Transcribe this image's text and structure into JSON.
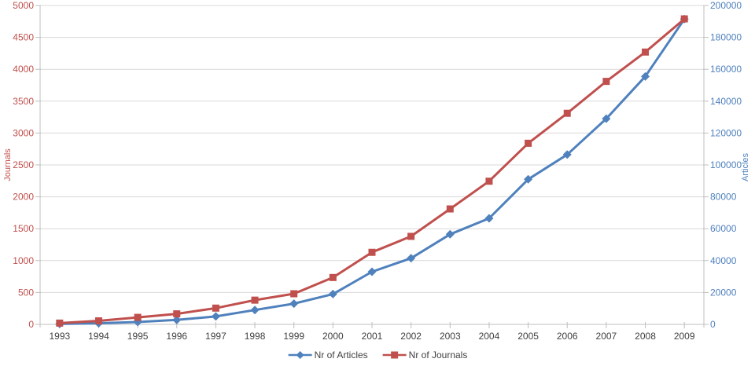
{
  "chart_data": {
    "type": "line",
    "title": "",
    "xlabel": "",
    "grid": true,
    "legend_position": "bottom",
    "x_categories": [
      1993,
      1994,
      1995,
      1996,
      1997,
      1998,
      1999,
      2000,
      2001,
      2002,
      2003,
      2004,
      2005,
      2006,
      2007,
      2008,
      2009
    ],
    "left_axis": {
      "label": "Journals",
      "min": 0,
      "max": 5000,
      "tick_step": 500,
      "ticks": [
        0,
        500,
        1000,
        1500,
        2000,
        2500,
        3000,
        3500,
        4000,
        4500,
        5000
      ],
      "color": "#C0504D"
    },
    "right_axis": {
      "label": "Articles",
      "min": 0,
      "max": 200000,
      "tick_step": 20000,
      "ticks": [
        0,
        20000,
        40000,
        60000,
        80000,
        100000,
        120000,
        140000,
        160000,
        180000,
        200000
      ],
      "color": "#4F81BD"
    },
    "series": [
      {
        "name": "Nr of Articles",
        "axis": "right",
        "color": "#4F81BD",
        "marker": "diamond",
        "values": [
          300,
          700,
          1500,
          2800,
          5000,
          9000,
          13000,
          19000,
          33000,
          41500,
          56500,
          66500,
          91000,
          106500,
          129000,
          155500,
          191500
        ]
      },
      {
        "name": "Nr of Journals",
        "axis": "left",
        "color": "#C0504D",
        "marker": "square",
        "values": [
          20,
          55,
          110,
          165,
          255,
          380,
          480,
          735,
          1130,
          1380,
          1810,
          2245,
          2840,
          3310,
          3810,
          4270,
          4790
        ]
      }
    ],
    "colors": {
      "grid_line": "#D9D9D9",
      "axis_line": "#BFBFBF",
      "x_tick_text": "#404040",
      "background": "#FFFFFF"
    }
  }
}
